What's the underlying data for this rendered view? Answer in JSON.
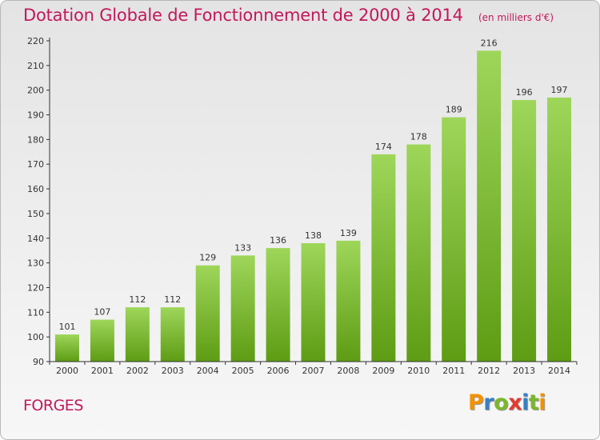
{
  "title": "Dotation Globale de Fonctionnement de 2000 à 2014",
  "unit_note": "(en milliers d'€)",
  "commune": "FORGES",
  "brand": {
    "letters": [
      "P",
      "r",
      "o",
      "x",
      "i",
      "t",
      "i"
    ],
    "colors": [
      "#f39200",
      "#3a7fc1",
      "#7ab829",
      "#e23b2f",
      "#3a7fc1",
      "#7ab829",
      "#f39200"
    ]
  },
  "colors": {
    "accent": "#c2185b",
    "bar_top": "#9ed65a",
    "bar_bottom": "#5e9c14"
  },
  "chart_data": {
    "type": "bar",
    "title": "Dotation Globale de Fonctionnement de 2000 à 2014",
    "categories": [
      "2000",
      "2001",
      "2002",
      "2003",
      "2004",
      "2005",
      "2006",
      "2007",
      "2008",
      "2009",
      "2010",
      "2011",
      "2012",
      "2013",
      "2014"
    ],
    "values": [
      101,
      107,
      112,
      112,
      129,
      133,
      136,
      138,
      139,
      174,
      178,
      189,
      216,
      196,
      197
    ],
    "ylim": [
      90,
      220
    ],
    "yticks": [
      90,
      100,
      110,
      120,
      130,
      140,
      150,
      160,
      170,
      180,
      190,
      200,
      210,
      220
    ],
    "grid": false,
    "legend": "none",
    "data_labels": true
  }
}
